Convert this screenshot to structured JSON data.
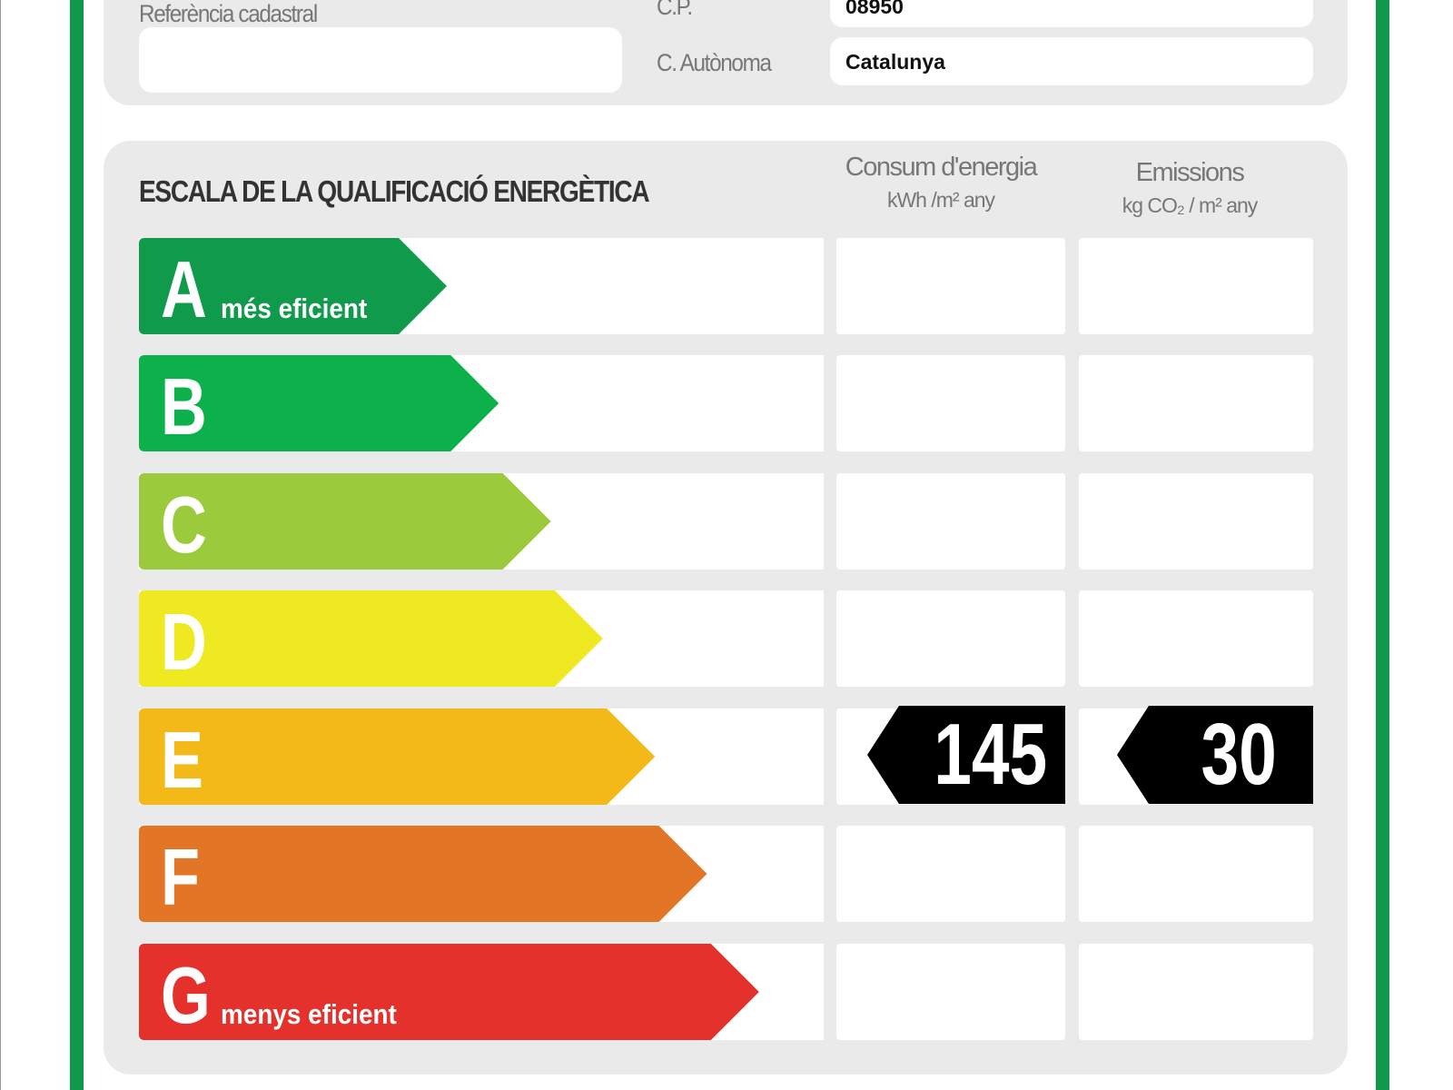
{
  "header_fields": {
    "cadastral_label": "Referència cadastral",
    "cp_label": "C.P.",
    "cp_value": "08950",
    "region_label": "C. Autònoma",
    "region_value": "Catalunya"
  },
  "scale": {
    "title": "ESCALA DE LA QUALIFICACIÓ ENERGÈTICA",
    "energy_header": "Consum d'energia",
    "energy_unit": "kWh /m² any",
    "emissions_header": "Emissions",
    "emissions_unit": "kg CO₂ / m² any",
    "classes": [
      {
        "letter": "A",
        "sub": "més eficient",
        "color": "#0f9a4c"
      },
      {
        "letter": "B",
        "sub": "",
        "color": "#0db14b"
      },
      {
        "letter": "C",
        "sub": "",
        "color": "#9bcb3c"
      },
      {
        "letter": "D",
        "sub": "",
        "color": "#efe922"
      },
      {
        "letter": "E",
        "sub": "",
        "color": "#f2b918"
      },
      {
        "letter": "F",
        "sub": "",
        "color": "#e37626"
      },
      {
        "letter": "G",
        "sub": "menys eficient",
        "color": "#e5312b"
      }
    ],
    "rating_class": "E",
    "energy_value": "145",
    "emissions_value": "30"
  }
}
